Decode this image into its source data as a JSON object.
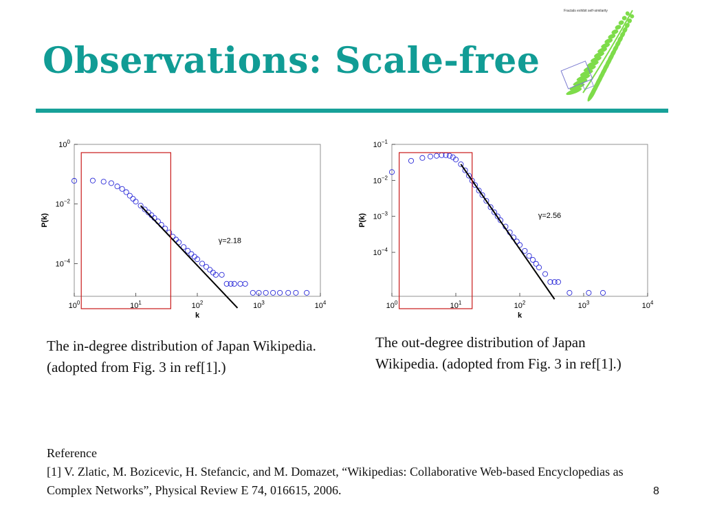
{
  "slide": {
    "title": "Observations: Scale-free",
    "fern_caption": "Fractals exhibit self-similarity",
    "caption_left": "The in-degree distribution of Japan Wikipedia. (adopted from Fig. 3 in ref[1].)",
    "caption_right": "The out-degree distribution of Japan Wikipedia. (adopted from Fig. 3 in ref[1].)",
    "reference_heading": "Reference",
    "reference_text": "[1] V. Zlatic, M. Bozicevic, H. Stefancic, and M. Domazet, “Wikipedias: Collaborative Web-based Encyclopedias as Complex Networks”, Physical Review E 74, 016615, 2006.",
    "page_number": "8"
  },
  "colors": {
    "title": "#119c95",
    "rule": "#17a199",
    "markers": "#2b2bd8",
    "fit_line": "#000000",
    "highlight_box": "#c81818",
    "fern": "#7edc4a"
  },
  "chart_data": [
    {
      "type": "scatter",
      "xlabel": "k",
      "ylabel": "P(k)",
      "x_scale": "log",
      "y_scale": "log",
      "xlim": [
        1,
        10000
      ],
      "ylim": [
        8e-06,
        1
      ],
      "x_ticks": [
        "10^0",
        "10^1",
        "10^2",
        "10^3",
        "10^4"
      ],
      "y_ticks": [
        "10^0",
        "10^-2",
        "10^-4"
      ],
      "annotation": "γ=2.18",
      "fit": {
        "gamma": 2.18,
        "x_from": 12,
        "x_to": 450
      },
      "highlight_box_k": [
        1.3,
        37
      ],
      "series": [
        {
          "x": [
            1,
            2,
            3,
            4,
            5,
            6,
            7,
            8,
            9,
            10,
            12,
            14,
            16,
            18,
            20,
            23,
            26,
            30,
            35,
            40,
            45,
            50,
            60,
            70,
            80,
            90,
            100,
            120,
            140,
            160,
            180,
            200,
            250,
            300,
            350,
            400,
            500,
            600,
            800,
            1000,
            1300,
            1700,
            2200,
            3000,
            4000,
            6000
          ],
          "y": [
            0.06,
            0.061,
            0.056,
            0.05,
            0.039,
            0.032,
            0.025,
            0.019,
            0.015,
            0.012,
            0.0088,
            0.0066,
            0.0052,
            0.0042,
            0.0034,
            0.0026,
            0.002,
            0.0015,
            0.0011,
            0.0008,
            0.00064,
            0.00052,
            0.00036,
            0.00027,
            0.00021,
            0.00017,
            0.00014,
            0.0001,
            7.8e-05,
            6.2e-05,
            5e-05,
            4.2e-05,
            4.2e-05,
            2.1e-05,
            2.1e-05,
            2.1e-05,
            2.1e-05,
            2.1e-05,
            1.05e-05,
            1.05e-05,
            1.05e-05,
            1.05e-05,
            1.05e-05,
            1.05e-05,
            1.05e-05,
            1.05e-05
          ]
        }
      ]
    },
    {
      "type": "scatter",
      "xlabel": "k",
      "ylabel": "P(k)",
      "x_scale": "log",
      "y_scale": "log",
      "xlim": [
        1,
        10000
      ],
      "ylim": [
        6e-06,
        0.1
      ],
      "x_ticks": [
        "10^0",
        "10^1",
        "10^2",
        "10^3",
        "10^4"
      ],
      "y_ticks": [
        "10^-1",
        "10^-2",
        "10^-3",
        "10^-4"
      ],
      "annotation": "γ=2.56",
      "fit": {
        "gamma": 2.56,
        "x_from": 12,
        "x_to": 350
      },
      "highlight_box_k": [
        1.3,
        18
      ],
      "series": [
        {
          "x": [
            1,
            2,
            3,
            4,
            5,
            6,
            7,
            8,
            9,
            10,
            12,
            14,
            16,
            18,
            20,
            23,
            26,
            30,
            35,
            40,
            45,
            50,
            60,
            70,
            80,
            90,
            100,
            120,
            140,
            160,
            180,
            200,
            250,
            300,
            350,
            400,
            600,
            1200,
            2000
          ],
          "y": [
            0.017,
            0.035,
            0.042,
            0.046,
            0.048,
            0.05,
            0.05,
            0.048,
            0.044,
            0.038,
            0.028,
            0.019,
            0.0135,
            0.0098,
            0.0074,
            0.0052,
            0.0039,
            0.0027,
            0.0018,
            0.0013,
            0.001,
            0.00078,
            0.00052,
            0.00036,
            0.00026,
            0.0002,
            0.00016,
            0.00011,
            8e-05,
            6.2e-05,
            4.8e-05,
            3.8e-05,
            2.5e-05,
            1.5e-05,
            1.5e-05,
            1.5e-05,
            7.5e-06,
            7.5e-06,
            7.5e-06
          ]
        }
      ]
    }
  ]
}
